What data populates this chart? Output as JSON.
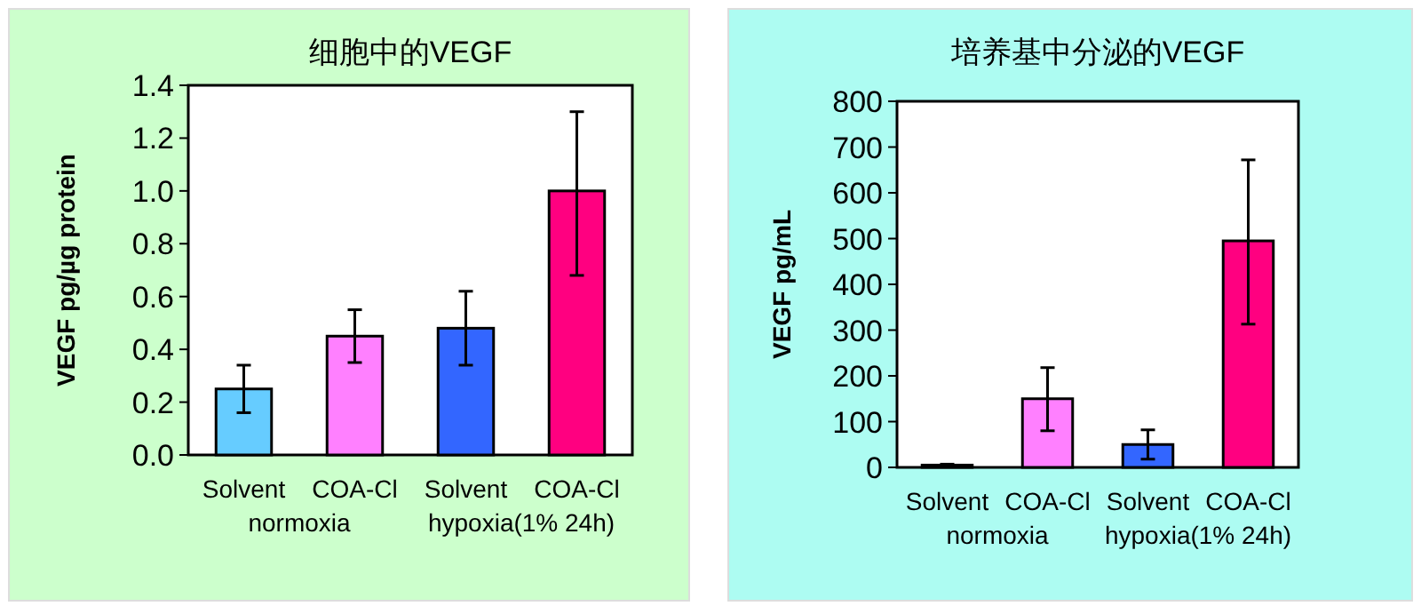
{
  "chart_data": [
    {
      "type": "bar",
      "title": "细胞中的VEGF",
      "ylabel": "VEGF pg/µg protein",
      "categories": [
        "Solvent",
        "COA-Cl",
        "Solvent",
        "COA-Cl"
      ],
      "values": [
        0.25,
        0.45,
        0.48,
        1.0
      ],
      "colors": [
        "#66ccff",
        "#ff80ff",
        "#3366ff",
        "#ff0080"
      ],
      "errors": [
        [
          0.16,
          0.34
        ],
        [
          0.35,
          0.55
        ],
        [
          0.34,
          0.62
        ],
        [
          0.68,
          1.3
        ]
      ],
      "ylim": [
        0,
        1.4
      ],
      "yticks": [
        {
          "value": 0,
          "label": "0.0"
        },
        0.2,
        0.4,
        0.6,
        0.8,
        {
          "value": 1,
          "label": "1.0"
        },
        1.2,
        1.4
      ],
      "annotations": [
        "normoxia",
        "hypoxia(1% 24h)"
      ]
    },
    {
      "type": "bar",
      "title": "培养基中分泌的VEGF",
      "ylabel": "VEGF  pg/mL",
      "categories": [
        "Solvent",
        "COA-Cl",
        "Solvent",
        "COA-Cl"
      ],
      "values": [
        5,
        150,
        50,
        495
      ],
      "colors": [
        "#3366ff",
        "#ff80ff",
        "#3366ff",
        "#ff0080"
      ],
      "errors": [
        [
          3,
          7
        ],
        [
          80,
          218
        ],
        [
          18,
          82
        ],
        [
          313,
          672
        ]
      ],
      "ylim": [
        0,
        800
      ],
      "yticks": [
        0,
        100,
        200,
        300,
        400,
        500,
        600,
        700,
        800
      ],
      "annotations": [
        "normoxia",
        "hypoxia(1% 24h)"
      ]
    }
  ]
}
